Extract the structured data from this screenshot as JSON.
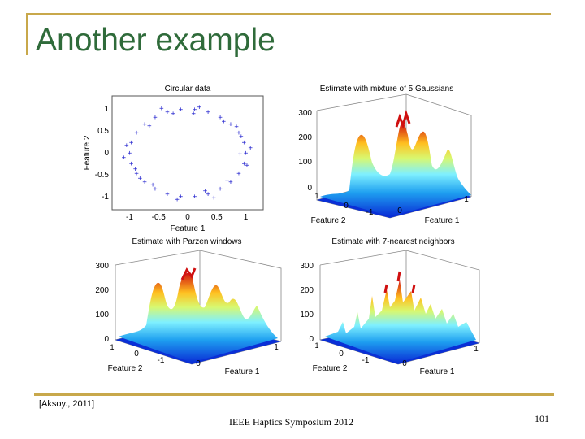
{
  "slide": {
    "title": "Another example",
    "citation": "[Aksoy., 2011]",
    "footer": "IEEE Haptics Symposium 2012",
    "page_number": "101"
  },
  "colors": {
    "title": "#2f6b3a",
    "rule": "#c8a84b",
    "scatter_marker": "#2b2bd0"
  },
  "chart_data": [
    {
      "type": "scatter",
      "title": "Circular data",
      "xlabel": "Feature 1",
      "ylabel": "Feature 2",
      "xlim": [
        -1.3,
        1.3
      ],
      "ylim": [
        -1.3,
        1.3
      ],
      "xticks": [
        "-1",
        "-0.5",
        "0",
        "0.5",
        "1"
      ],
      "yticks": [
        "1",
        "0.5",
        "0",
        "-0.5",
        "-1"
      ],
      "marker": "+",
      "points": [
        [
          1.0,
          0.0
        ],
        [
          0.97,
          0.24
        ],
        [
          0.88,
          0.46
        ],
        [
          0.74,
          0.66
        ],
        [
          0.56,
          0.82
        ],
        [
          0.35,
          0.94
        ],
        [
          0.12,
          0.99
        ],
        [
          -0.12,
          0.99
        ],
        [
          -0.35,
          0.94
        ],
        [
          -0.56,
          0.82
        ],
        [
          -0.74,
          0.66
        ],
        [
          -0.88,
          0.46
        ],
        [
          -0.97,
          0.24
        ],
        [
          -1.0,
          0.0
        ],
        [
          -0.97,
          -0.24
        ],
        [
          -0.88,
          -0.46
        ],
        [
          -0.74,
          -0.66
        ],
        [
          -0.56,
          -0.82
        ],
        [
          -0.35,
          -0.94
        ],
        [
          -0.12,
          -0.99
        ],
        [
          0.12,
          -0.99
        ],
        [
          0.35,
          -0.94
        ],
        [
          0.56,
          -0.82
        ],
        [
          0.74,
          -0.66
        ],
        [
          0.88,
          -0.46
        ],
        [
          0.97,
          -0.24
        ],
        [
          1.08,
          0.12
        ],
        [
          0.92,
          0.38
        ],
        [
          0.62,
          0.72
        ],
        [
          0.2,
          1.05
        ],
        [
          -0.25,
          0.9
        ],
        [
          -0.66,
          0.62
        ],
        [
          -1.05,
          0.18
        ],
        [
          -0.9,
          -0.36
        ],
        [
          -0.6,
          -0.72
        ],
        [
          -0.18,
          -1.06
        ],
        [
          0.3,
          -0.86
        ],
        [
          0.68,
          -0.62
        ],
        [
          1.02,
          -0.28
        ],
        [
          0.84,
          0.6
        ],
        [
          -0.45,
          1.02
        ],
        [
          -1.1,
          -0.1
        ],
        [
          0.45,
          -1.02
        ],
        [
          0.1,
          0.9
        ],
        [
          -0.82,
          -0.58
        ],
        [
          0.9,
          -0.02
        ]
      ]
    },
    {
      "type": "surface",
      "title": "Estimate with mixture of 5 Gaussians",
      "xlabel": "Feature 1",
      "ylabel": "Feature 2",
      "zticks": [
        "300",
        "200",
        "100",
        "0"
      ],
      "xticks": [
        "-1",
        "0",
        "1"
      ],
      "yticks": [
        "-1",
        "0",
        "1"
      ]
    },
    {
      "type": "surface",
      "title": "Estimate with Parzen windows",
      "xlabel": "Feature 1",
      "ylabel": "Feature 2",
      "zticks": [
        "300",
        "200",
        "100",
        "0"
      ],
      "xticks": [
        "-1",
        "0",
        "1"
      ],
      "yticks": [
        "-1",
        "0",
        "1"
      ]
    },
    {
      "type": "surface",
      "title": "Estimate with 7-nearest neighbors",
      "xlabel": "Feature 1",
      "ylabel": "Feature 2",
      "zticks": [
        "300",
        "200",
        "100",
        "0"
      ],
      "xticks": [
        "-1",
        "0",
        "1"
      ],
      "yticks": [
        "-1",
        "0",
        "1"
      ]
    }
  ]
}
